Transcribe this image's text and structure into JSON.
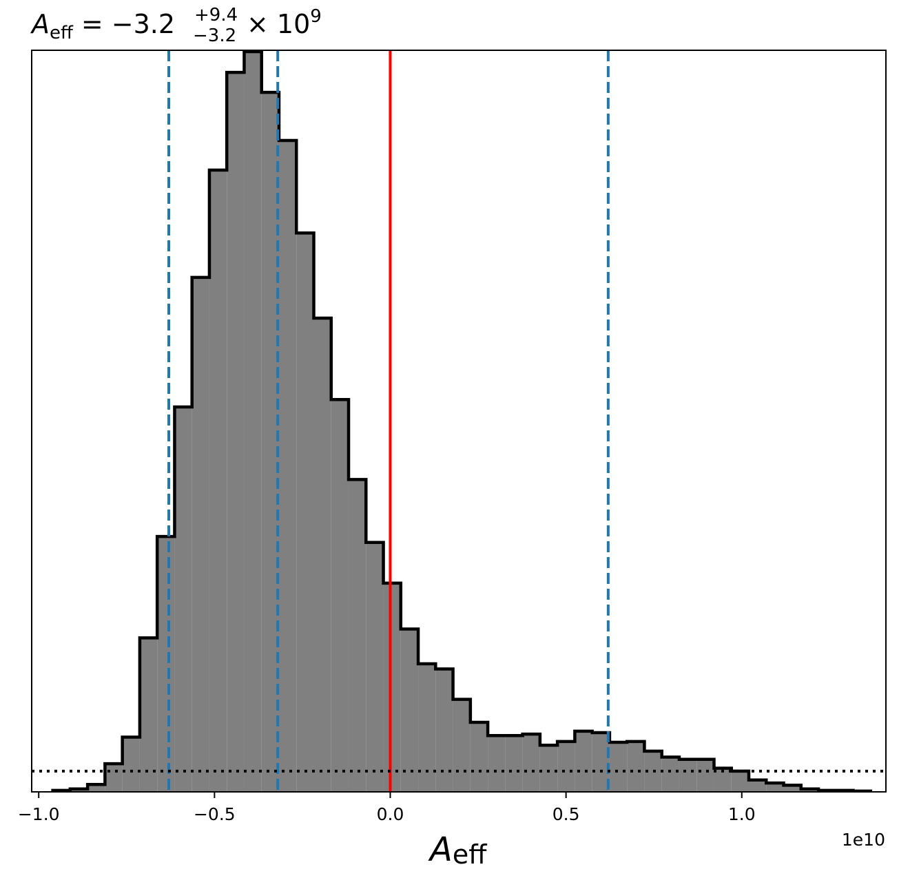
{
  "chart_data": {
    "type": "histogram",
    "title": {
      "symbol": "A",
      "symbol_sub": "eff",
      "equals": "=",
      "value": "−3.2",
      "upper": "+9.4",
      "lower": "−3.2",
      "times": "× 10",
      "exponent": "9"
    },
    "xlabel": {
      "symbol": "A",
      "sub": "eff"
    },
    "x_offset_text": "1e10",
    "x_scale": 10000000000,
    "xlim": [
      -1.02,
      1.41
    ],
    "ylim": [
      0,
      1.0
    ],
    "y_ticks_shown": false,
    "grid": false,
    "legend": false,
    "x_ticks": [
      {
        "value": -1.0,
        "label": "−1.0"
      },
      {
        "value": -0.5,
        "label": "−0.5"
      },
      {
        "value": 0.0,
        "label": "0.0"
      },
      {
        "value": 0.5,
        "label": "0.5"
      },
      {
        "value": 1.0,
        "label": "1.0"
      }
    ],
    "bins": {
      "start": -0.96,
      "width": 0.0495,
      "heights_relative": [
        0.002,
        0.004,
        0.01,
        0.038,
        0.074,
        0.208,
        0.345,
        0.52,
        0.695,
        0.84,
        0.972,
        1.0,
        0.945,
        0.88,
        0.755,
        0.64,
        0.53,
        0.422,
        0.337,
        0.282,
        0.22,
        0.173,
        0.166,
        0.125,
        0.094,
        0.076,
        0.076,
        0.078,
        0.063,
        0.068,
        0.082,
        0.08,
        0.067,
        0.068,
        0.055,
        0.047,
        0.044,
        0.044,
        0.032,
        0.028,
        0.016,
        0.012,
        0.009,
        0.004,
        0.002,
        0.002,
        0.001
      ]
    },
    "reference_lines": [
      {
        "kind": "vertical",
        "x": -0.63,
        "style": "dashed",
        "color": "#1f77b4"
      },
      {
        "kind": "vertical",
        "x": -0.32,
        "style": "dashed",
        "color": "#1f77b4"
      },
      {
        "kind": "vertical",
        "x": 0.62,
        "style": "dashed",
        "color": "#1f77b4"
      },
      {
        "kind": "vertical",
        "x": 0.0,
        "style": "solid",
        "color": "#ff0000"
      },
      {
        "kind": "horizontal",
        "y": 0.028,
        "style": "dotted",
        "color": "#000000"
      }
    ],
    "colors": {
      "fill": "#808080",
      "outline": "#000000",
      "quantile_line": "#1f77b4",
      "truth_line": "#ff0000"
    }
  }
}
